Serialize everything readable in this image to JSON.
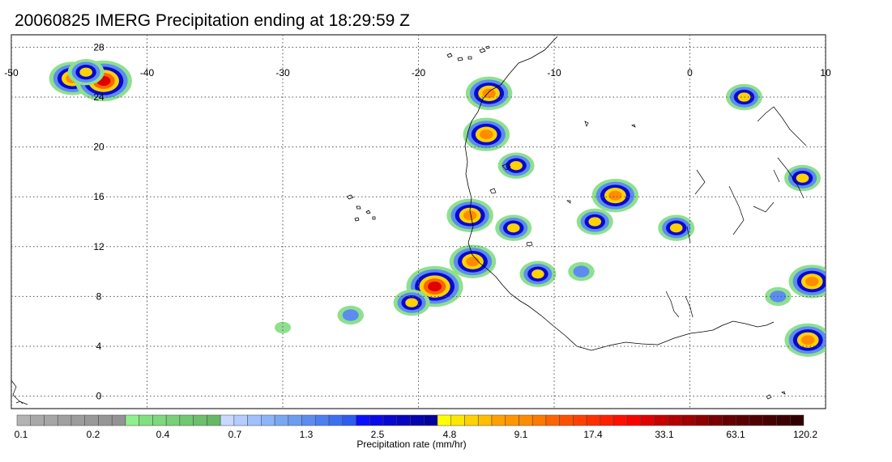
{
  "title": "20060825 IMERG Precipitation ending at 18:29:59 Z",
  "map": {
    "lon_range": [
      -50,
      10
    ],
    "lat_range": [
      -1,
      29
    ],
    "lon_labels": [
      "-50",
      "-40",
      "-30",
      "-20",
      "-10",
      "0",
      "10"
    ],
    "lon_values": [
      -50,
      -40,
      -30,
      -20,
      -10,
      0,
      10
    ],
    "lat_labels": [
      "0",
      "4",
      "8",
      "12",
      "16",
      "20",
      "24",
      "28"
    ],
    "lat_values": [
      0,
      4,
      8,
      12,
      16,
      20,
      24,
      28
    ],
    "grid": "dotted",
    "precip_cells": [
      {
        "lon": -45.5,
        "lat": 25.5,
        "level": 3
      },
      {
        "lon": -43.2,
        "lat": 25.3,
        "level": 4
      },
      {
        "lon": -44.5,
        "lat": 26.0,
        "level": 2
      },
      {
        "lon": -18.8,
        "lat": 8.8,
        "level": 4
      },
      {
        "lon": -16.0,
        "lat": 10.8,
        "level": 3
      },
      {
        "lon": -20.5,
        "lat": 7.5,
        "level": 2
      },
      {
        "lon": -25.0,
        "lat": 6.5,
        "level": 1
      },
      {
        "lon": -30.0,
        "lat": 5.5,
        "level": 0
      },
      {
        "lon": -16.2,
        "lat": 14.5,
        "level": 3
      },
      {
        "lon": -15.0,
        "lat": 21.0,
        "level": 3
      },
      {
        "lon": -14.8,
        "lat": 24.3,
        "level": 3
      },
      {
        "lon": -12.8,
        "lat": 18.5,
        "level": 2
      },
      {
        "lon": -13.0,
        "lat": 13.5,
        "level": 2
      },
      {
        "lon": -11.2,
        "lat": 9.8,
        "level": 2
      },
      {
        "lon": -8.0,
        "lat": 10.0,
        "level": 1
      },
      {
        "lon": -5.5,
        "lat": 16.1,
        "level": 3
      },
      {
        "lon": -7.0,
        "lat": 14.0,
        "level": 2
      },
      {
        "lon": -1.0,
        "lat": 13.5,
        "level": 2
      },
      {
        "lon": 4.0,
        "lat": 24.0,
        "level": 2
      },
      {
        "lon": 8.3,
        "lat": 17.5,
        "level": 2
      },
      {
        "lon": 9.0,
        "lat": 9.2,
        "level": 3
      },
      {
        "lon": 8.7,
        "lat": 4.5,
        "level": 3
      },
      {
        "lon": 6.5,
        "lat": 8.0,
        "level": 1
      }
    ]
  },
  "colorbar": {
    "colors": [
      "#b3b3b3",
      "#a8a8a8",
      "#a6a6a6",
      "#a0a0a0",
      "#9d9d9d",
      "#999999",
      "#969696",
      "#939393",
      "#8ef08e",
      "#80e080",
      "#7ed87e",
      "#78d078",
      "#72c872",
      "#6cc06c",
      "#66b866",
      "#c8d8ff",
      "#b4ccff",
      "#a0c0ff",
      "#8cb4f8",
      "#78a8f0",
      "#6c9cf0",
      "#5c8cf0",
      "#4c80f0",
      "#3c70f0",
      "#2c5cf0",
      "#0a10ff",
      "#0a0ae8",
      "#0808d0",
      "#0606c0",
      "#0404b0",
      "#0202a0",
      "#ffff00",
      "#ffe600",
      "#ffd200",
      "#ffbe00",
      "#ffa000",
      "#ff9600",
      "#ff8c00",
      "#ff7800",
      "#ff6400",
      "#ff5000",
      "#ff4000",
      "#ff3000",
      "#ff2000",
      "#ff1000",
      "#ff0000",
      "#e00000",
      "#c80000",
      "#b40000",
      "#a00000",
      "#8c0000",
      "#780000",
      "#640000",
      "#5a0000",
      "#500000",
      "#460000",
      "#3c0000",
      "#300000"
    ],
    "labels": [
      "0.1",
      "0.2",
      "0.4",
      "0.7",
      "1.3",
      "2.5",
      "4.8",
      "9.1",
      "17.4",
      "33.1",
      "63.1",
      "120.2"
    ],
    "title": "Precipitation rate (mm/hr)"
  }
}
